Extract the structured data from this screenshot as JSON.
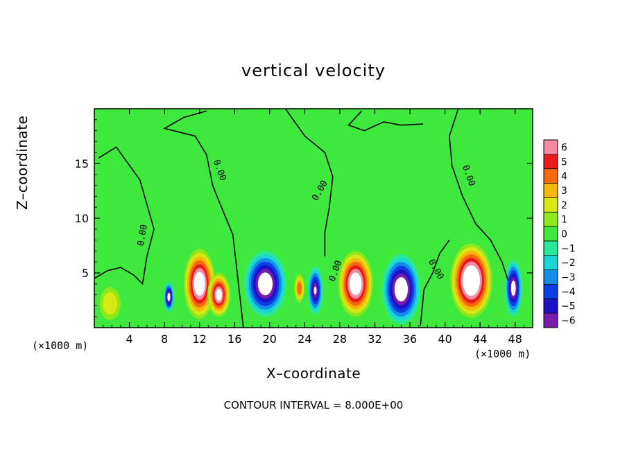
{
  "chart_data": {
    "type": "heatmap",
    "title": "vertical velocity",
    "xlabel": "X–coordinate",
    "ylabel": "Z–coordinate",
    "x_unit_left": "(×1000 m)",
    "x_unit_right": "(×1000 m)",
    "footer": "CONTOUR INTERVAL = 8.000E+00",
    "xlim": [
      0,
      50
    ],
    "ylim": [
      0,
      20
    ],
    "x_ticks": [
      "4",
      "8",
      "12",
      "16",
      "20",
      "24",
      "28",
      "32",
      "36",
      "40",
      "44",
      "48"
    ],
    "y_ticks": [
      "5",
      "10",
      "15"
    ],
    "colorbar_ticks": [
      "6",
      "5",
      "4",
      "3",
      "2",
      "1",
      "0",
      "−1",
      "−2",
      "−3",
      "−4",
      "−5",
      "−6"
    ],
    "colorbar_range": [
      -6,
      6
    ],
    "contour_labels": [
      "0.00",
      "0.00",
      "0.00",
      "0.00",
      "0.00",
      "0.00"
    ],
    "contour_interval": 8,
    "cells": [
      {
        "x": 1.8,
        "z": 2.2,
        "w": 2.0,
        "sx": 1.2,
        "sz": 1.5
      },
      {
        "x": 8.5,
        "z": 2.8,
        "w": -6.5,
        "sx": 0.6,
        "sz": 1.4
      },
      {
        "x": 12.0,
        "z": 4.0,
        "w": 8.0,
        "sx": 1.8,
        "sz": 3.2
      },
      {
        "x": 14.2,
        "z": 3.0,
        "w": 7.0,
        "sx": 1.3,
        "sz": 2.0
      },
      {
        "x": 19.5,
        "z": 4.0,
        "w": -8.0,
        "sx": 2.4,
        "sz": 3.0
      },
      {
        "x": 23.4,
        "z": 3.6,
        "w": 4.0,
        "sx": 0.6,
        "sz": 1.3
      },
      {
        "x": 25.2,
        "z": 3.4,
        "w": -6.0,
        "sx": 0.9,
        "sz": 2.2
      },
      {
        "x": 29.8,
        "z": 4.0,
        "w": 8.0,
        "sx": 2.0,
        "sz": 3.0
      },
      {
        "x": 35.0,
        "z": 3.5,
        "w": -8.0,
        "sx": 2.2,
        "sz": 3.2
      },
      {
        "x": 43.0,
        "z": 4.3,
        "w": 9.0,
        "sx": 2.4,
        "sz": 3.4
      },
      {
        "x": 47.8,
        "z": 3.6,
        "w": -7.0,
        "sx": 1.0,
        "sz": 2.6
      }
    ]
  }
}
